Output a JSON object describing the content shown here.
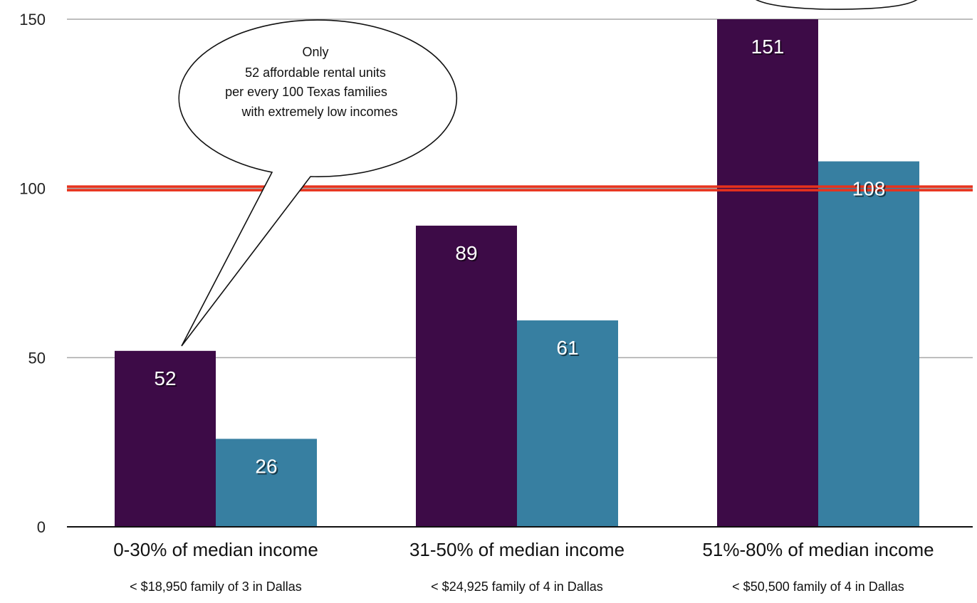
{
  "chart_data": {
    "type": "bar",
    "categories": [
      "0-30% of median income",
      "31-50% of median income",
      "51%-80% of median income"
    ],
    "subcategories": [
      "< $18,950 family of 3 in Dallas",
      "< $24,925 family of 4 in Dallas",
      "< $50,500 family of 4 in Dallas"
    ],
    "series": [
      {
        "values": [
          52,
          89,
          151
        ],
        "color": "#3d0b47"
      },
      {
        "values": [
          26,
          61,
          108
        ],
        "color": "#377fa1"
      }
    ],
    "ylim": [
      0,
      150
    ],
    "yticks": [
      0,
      50,
      100,
      150
    ],
    "grid": true,
    "reference_line": {
      "value": 100,
      "color": "#e8321c"
    },
    "annotation": {
      "lines": [
        "Only",
        "52 affordable rental units",
        "per every 100 Texas families",
        "with extremely low incomes"
      ]
    }
  }
}
